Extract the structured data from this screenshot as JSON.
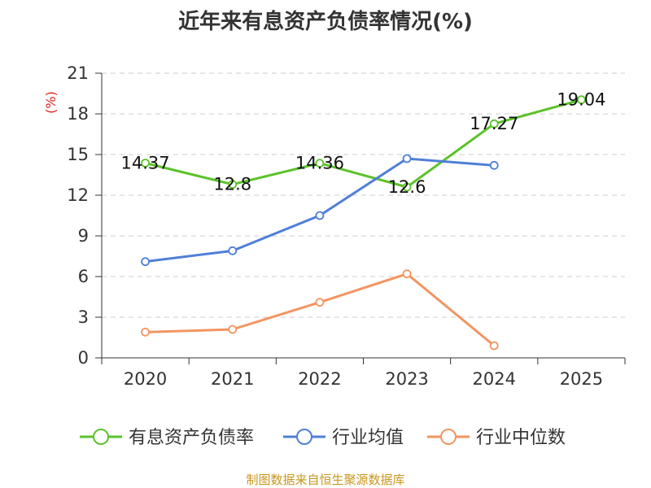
{
  "chart_data": {
    "type": "line",
    "title": "近年来有息资产负债率情况(%)",
    "xlabel": "",
    "ylabel": "(%)",
    "categories": [
      "2020",
      "2021",
      "2022",
      "2023",
      "2024",
      "2025"
    ],
    "ylim": [
      0,
      21
    ],
    "yticks": [
      0,
      3,
      6,
      9,
      12,
      15,
      18,
      21
    ],
    "grid": true,
    "series": [
      {
        "name": "有息资产负债率",
        "color": "#5cc22b",
        "values": [
          14.37,
          12.8,
          14.36,
          12.6,
          17.27,
          19.04
        ],
        "labels": [
          "14.37",
          "12.8",
          "14.36",
          "12.6",
          "17.27",
          "19.04"
        ]
      },
      {
        "name": "行业均值",
        "color": "#4f7fd8",
        "values": [
          7.1,
          7.9,
          10.5,
          14.7,
          14.2,
          null
        ]
      },
      {
        "name": "行业中位数",
        "color": "#f39561",
        "values": [
          1.9,
          2.1,
          4.1,
          6.2,
          0.9,
          null
        ]
      }
    ],
    "legend_position": "bottom",
    "source": "制图数据来自恒生聚源数据库"
  }
}
